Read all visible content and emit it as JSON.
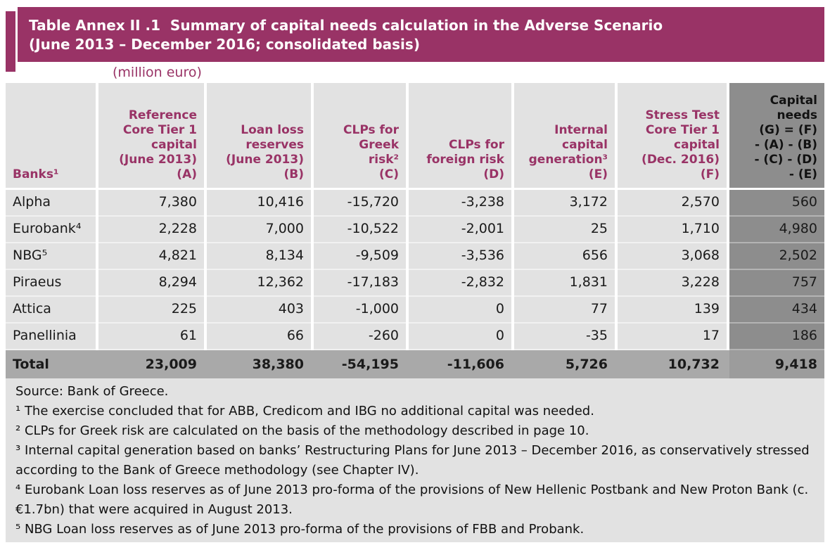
{
  "title": {
    "line1": "Table Annex II .1  Summary of capital needs calculation in the Adverse Scenario",
    "line2": "(June 2013 – December 2016; consolidated basis)"
  },
  "unit_label": "(million euro)",
  "colors": {
    "accent_plum": "#993366",
    "cell_gray": "#e2e2e2",
    "capital_needs_column_gray": "#8d8d8d",
    "total_row_gray": "#a9a9a9",
    "title_text": "#ffffff"
  },
  "table": {
    "columns": [
      {
        "key": "banks",
        "label": "Banks¹"
      },
      {
        "key": "A",
        "label": "Reference\nCore Tier 1\ncapital\n(June 2013)\n(A)"
      },
      {
        "key": "B",
        "label": "Loan loss\nreserves\n(June 2013)\n(B)"
      },
      {
        "key": "C",
        "label": "CLPs for\nGreek\nrisk²\n(C)"
      },
      {
        "key": "D",
        "label": "CLPs for\nforeign risk\n(D)"
      },
      {
        "key": "E",
        "label": "Internal\ncapital\ngeneration³\n(E)"
      },
      {
        "key": "F",
        "label": "Stress Test\nCore Tier 1\ncapital\n(Dec. 2016)\n(F)"
      },
      {
        "key": "G",
        "label": "Capital\nneeds\n(G) = (F)\n- (A) - (B)\n- (C) - (D)\n- (E)"
      }
    ],
    "rows": [
      {
        "bank": "Alpha",
        "values": [
          "7,380",
          "10,416",
          "-15,720",
          "-3,238",
          "3,172",
          "2,570",
          "560"
        ]
      },
      {
        "bank": "Eurobank⁴",
        "values": [
          "2,228",
          "7,000",
          "-10,522",
          "-2,001",
          "25",
          "1,710",
          "4,980"
        ]
      },
      {
        "bank": "NBG⁵",
        "values": [
          "4,821",
          "8,134",
          "-9,509",
          "-3,536",
          "656",
          "3,068",
          "2,502"
        ]
      },
      {
        "bank": "Piraeus",
        "values": [
          "8,294",
          "12,362",
          "-17,183",
          "-2,832",
          "1,831",
          "3,228",
          "757"
        ]
      },
      {
        "bank": "Attica",
        "values": [
          "225",
          "403",
          "-1,000",
          "0",
          "77",
          "139",
          "434"
        ]
      },
      {
        "bank": "Panellinia",
        "values": [
          "61",
          "66",
          "-260",
          "0",
          "-35",
          "17",
          "186"
        ]
      }
    ],
    "total_row": {
      "label": "Total",
      "values": [
        "23,009",
        "38,380",
        "-54,195",
        "-11,606",
        "5,726",
        "10,732",
        "9,418"
      ]
    }
  },
  "footnotes": [
    "Source: Bank of Greece.",
    "¹ The exercise concluded that for ABB, Credicom and IBG no additional capital was needed.",
    "² CLPs for Greek risk are calculated on the basis of the methodology described in page 10.",
    "³ Internal capital generation based on banks’ Restructuring Plans for June 2013 – December 2016, as conservatively stressed according to the Bank of Greece methodology (see Chapter IV).",
    "⁴ Eurobank Loan loss reserves as of June 2013 pro-forma of the provisions of New Hellenic Postbank and New Proton Bank (c. €1.7bn) that were acquired in August 2013.",
    "⁵ NBG Loan loss reserves as of June 2013 pro-forma of the provisions of FBB and Probank."
  ]
}
